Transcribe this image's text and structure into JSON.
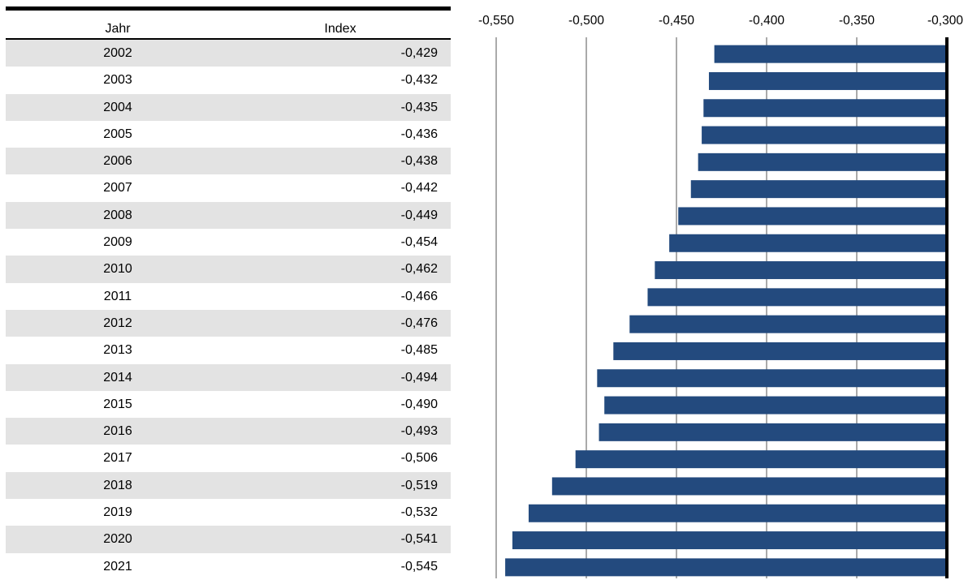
{
  "table": {
    "headers": {
      "year": "Jahr",
      "index": "Index"
    },
    "rows": [
      {
        "year": "2002",
        "index": "-0,429"
      },
      {
        "year": "2003",
        "index": "-0,432"
      },
      {
        "year": "2004",
        "index": "-0,435"
      },
      {
        "year": "2005",
        "index": "-0,436"
      },
      {
        "year": "2006",
        "index": "-0,438"
      },
      {
        "year": "2007",
        "index": "-0,442"
      },
      {
        "year": "2008",
        "index": "-0,449"
      },
      {
        "year": "2009",
        "index": "-0,454"
      },
      {
        "year": "2010",
        "index": "-0,462"
      },
      {
        "year": "2011",
        "index": "-0,466"
      },
      {
        "year": "2012",
        "index": "-0,476"
      },
      {
        "year": "2013",
        "index": "-0,485"
      },
      {
        "year": "2014",
        "index": "-0,494"
      },
      {
        "year": "2015",
        "index": "-0,490"
      },
      {
        "year": "2016",
        "index": "-0,493"
      },
      {
        "year": "2017",
        "index": "-0,506"
      },
      {
        "year": "2018",
        "index": "-0,519"
      },
      {
        "year": "2019",
        "index": "-0,532"
      },
      {
        "year": "2020",
        "index": "-0,541"
      },
      {
        "year": "2021",
        "index": "-0,545"
      }
    ]
  },
  "chart_data": {
    "type": "bar",
    "orientation": "horizontal",
    "categories": [
      "2002",
      "2003",
      "2004",
      "2005",
      "2006",
      "2007",
      "2008",
      "2009",
      "2010",
      "2011",
      "2012",
      "2013",
      "2014",
      "2015",
      "2016",
      "2017",
      "2018",
      "2019",
      "2020",
      "2021"
    ],
    "values": [
      -0.429,
      -0.432,
      -0.435,
      -0.436,
      -0.438,
      -0.442,
      -0.449,
      -0.454,
      -0.462,
      -0.466,
      -0.476,
      -0.485,
      -0.494,
      -0.49,
      -0.493,
      -0.506,
      -0.519,
      -0.532,
      -0.541,
      -0.545
    ],
    "xlim": [
      -0.55,
      -0.3
    ],
    "xticks": [
      -0.55,
      -0.5,
      -0.45,
      -0.4,
      -0.35,
      -0.3
    ],
    "xtick_labels": [
      "-0,550",
      "-0,500",
      "-0,450",
      "-0,400",
      "-0,350",
      "-0,300"
    ],
    "xaxis_position": "top",
    "grid": "vertical",
    "bar_color": "#234a7e",
    "baseline_color": "#000000"
  }
}
